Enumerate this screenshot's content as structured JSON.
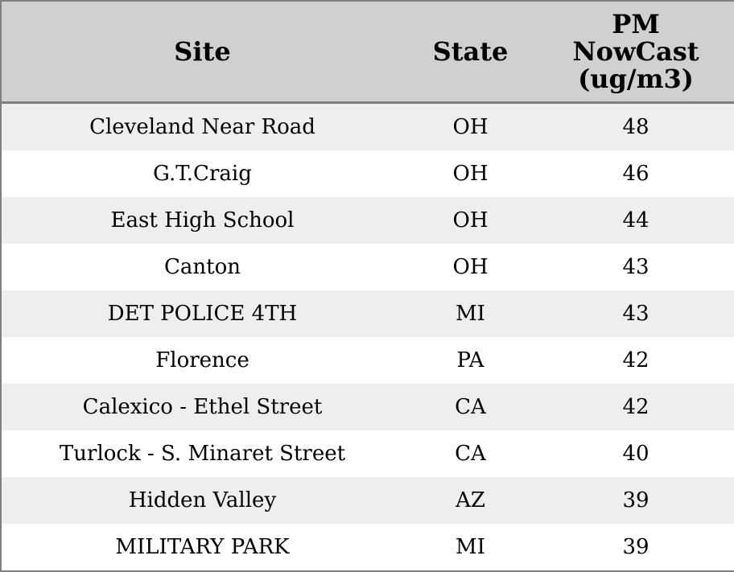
{
  "table": {
    "header": [
      "Site",
      "State",
      "PM NowCast (ug/m3)"
    ],
    "rows": [
      [
        "Cleveland Near Road",
        "OH",
        48
      ],
      [
        "G.T.Craig",
        "OH",
        46
      ],
      [
        "East High School",
        "OH",
        44
      ],
      [
        "Canton",
        "OH",
        43
      ],
      [
        "DET POLICE 4TH",
        "MI",
        43
      ],
      [
        "Florence",
        "PA",
        42
      ],
      [
        "Calexico - Ethel Street",
        "CA",
        42
      ],
      [
        "Turlock - S. Minaret Street",
        "CA",
        40
      ],
      [
        "Hidden Valley",
        "AZ",
        39
      ],
      [
        "MILITARY PARK",
        "MI",
        39
      ]
    ]
  }
}
